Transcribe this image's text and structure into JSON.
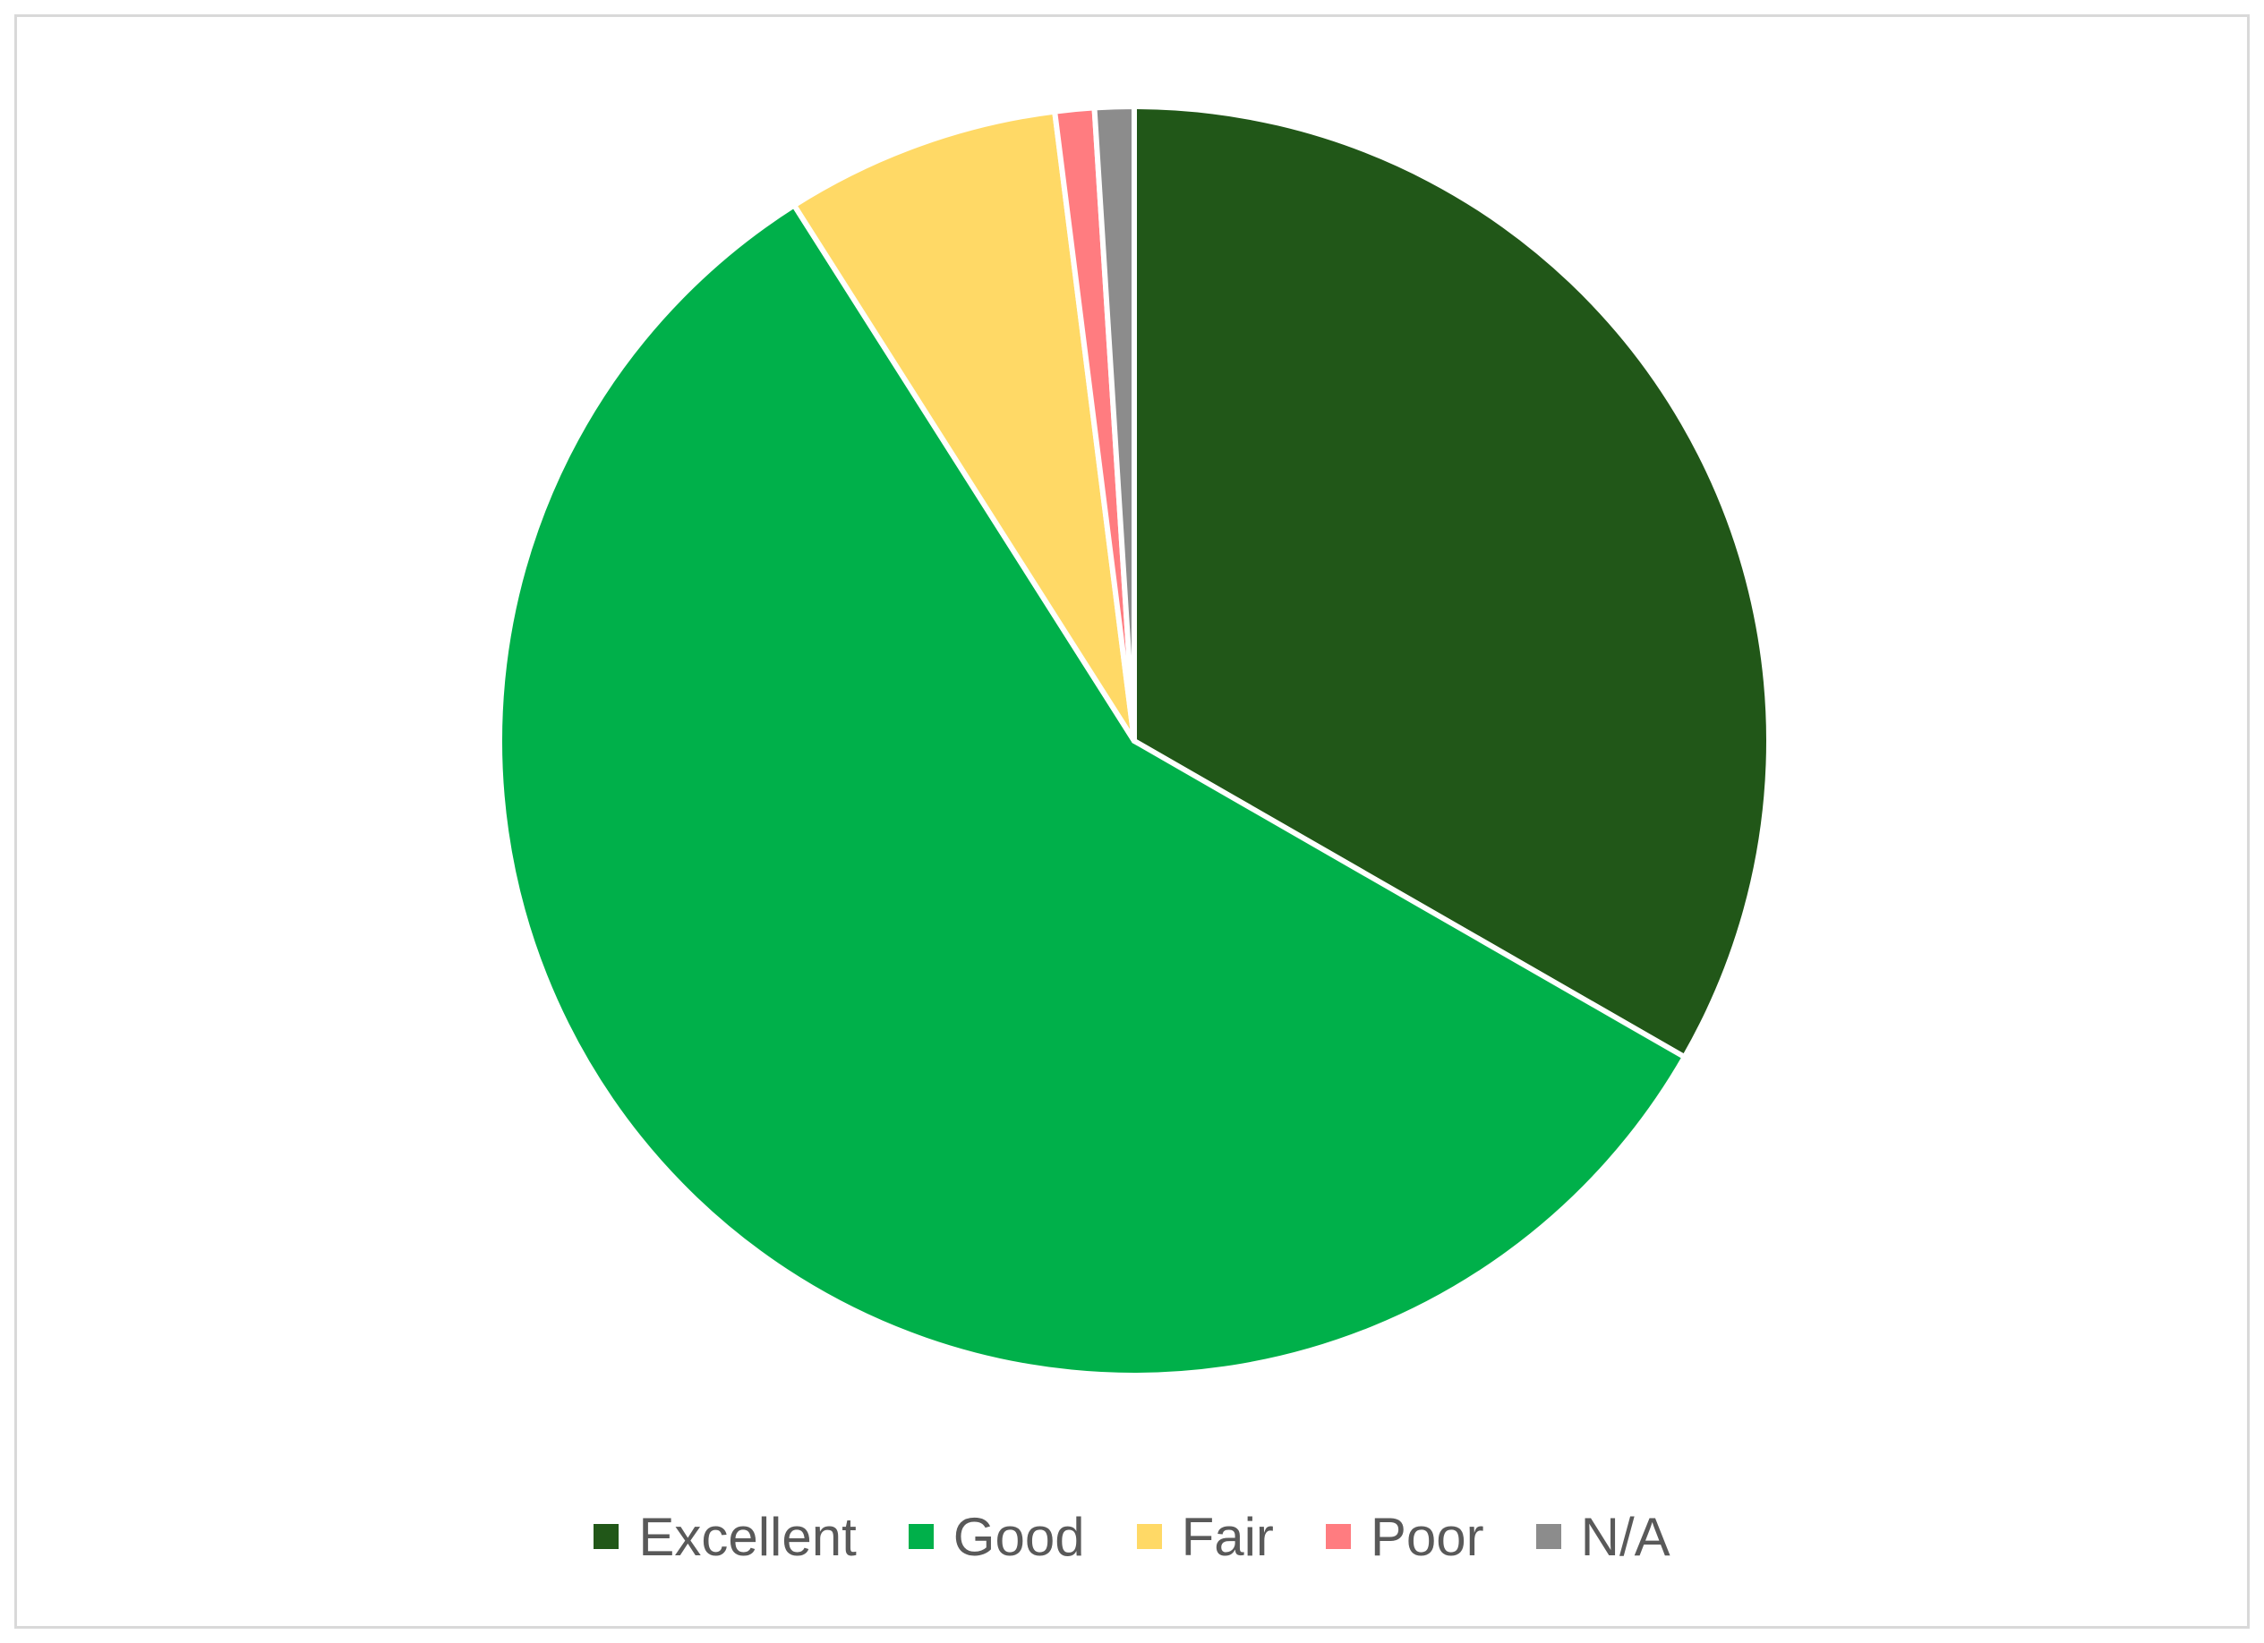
{
  "chart_data": {
    "type": "pie",
    "title": "",
    "categories": [
      "Excellent",
      "Good",
      "Fair",
      "Poor",
      "N/A"
    ],
    "values": [
      33.3,
      57.7,
      7.0,
      1.0,
      1.0
    ],
    "colors": [
      "#215718",
      "#00b04a",
      "#ffd966",
      "#ff7c80",
      "#8c8c8c"
    ],
    "start_angle_degrees": 0,
    "direction": "clockwise",
    "legend_position": "bottom"
  }
}
